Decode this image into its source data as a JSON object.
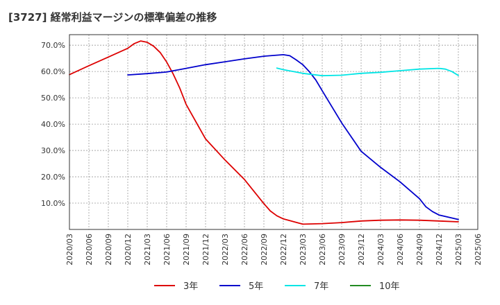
{
  "chart_data": {
    "type": "line",
    "title": "[3727]  経常利益マージンの標準偏差の推移",
    "xlabel": "",
    "ylabel": "",
    "x_ticks": [
      "2020/03",
      "2020/06",
      "2020/09",
      "2020/12",
      "2021/03",
      "2021/06",
      "2021/09",
      "2021/12",
      "2022/03",
      "2022/06",
      "2022/09",
      "2022/12",
      "2023/03",
      "2023/06",
      "2023/09",
      "2023/12",
      "2024/03",
      "2024/06",
      "2024/09",
      "2024/12",
      "2025/03",
      "2025/06"
    ],
    "y_ticks": [
      "10.0%",
      "20.0%",
      "30.0%",
      "40.0%",
      "50.0%",
      "60.0%",
      "70.0%"
    ],
    "ylim": [
      0,
      0.74
    ],
    "grid": true,
    "legend_position": "bottom",
    "series": [
      {
        "name": "3年",
        "color": "#dd0000",
        "points": [
          [
            "2020/03",
            0.588
          ],
          [
            "2020/06",
            0.622
          ],
          [
            "2020/09",
            0.655
          ],
          [
            "2020/12",
            0.688
          ],
          [
            "2021/01",
            0.706
          ],
          [
            "2021/02",
            0.716
          ],
          [
            "2021/03",
            0.711
          ],
          [
            "2021/04",
            0.696
          ],
          [
            "2021/05",
            0.672
          ],
          [
            "2021/06",
            0.636
          ],
          [
            "2021/07",
            0.591
          ],
          [
            "2021/08",
            0.538
          ],
          [
            "2021/09",
            0.475
          ],
          [
            "2021/12",
            0.344
          ],
          [
            "2022/03",
            0.264
          ],
          [
            "2022/06",
            0.19
          ],
          [
            "2022/09",
            0.098
          ],
          [
            "2022/10",
            0.07
          ],
          [
            "2022/11",
            0.052
          ],
          [
            "2022/12",
            0.04
          ],
          [
            "2023/03",
            0.02
          ],
          [
            "2023/06",
            0.022
          ],
          [
            "2023/09",
            0.026
          ],
          [
            "2023/12",
            0.032
          ],
          [
            "2024/03",
            0.035
          ],
          [
            "2024/06",
            0.036
          ],
          [
            "2024/09",
            0.035
          ],
          [
            "2024/12",
            0.032
          ],
          [
            "2025/03",
            0.029
          ]
        ]
      },
      {
        "name": "5年",
        "color": "#0000cc",
        "points": [
          [
            "2020/12",
            0.587
          ],
          [
            "2021/03",
            0.592
          ],
          [
            "2021/06",
            0.598
          ],
          [
            "2021/09",
            0.612
          ],
          [
            "2021/12",
            0.626
          ],
          [
            "2022/03",
            0.637
          ],
          [
            "2022/06",
            0.648
          ],
          [
            "2022/09",
            0.658
          ],
          [
            "2022/12",
            0.664
          ],
          [
            "2023/01",
            0.66
          ],
          [
            "2023/02",
            0.644
          ],
          [
            "2023/03",
            0.626
          ],
          [
            "2023/04",
            0.6
          ],
          [
            "2023/05",
            0.568
          ],
          [
            "2023/06",
            0.527
          ],
          [
            "2023/09",
            0.405
          ],
          [
            "2023/12",
            0.297
          ],
          [
            "2024/03",
            0.236
          ],
          [
            "2024/06",
            0.181
          ],
          [
            "2024/09",
            0.117
          ],
          [
            "2024/10",
            0.086
          ],
          [
            "2024/11",
            0.068
          ],
          [
            "2024/12",
            0.055
          ],
          [
            "2025/03",
            0.038
          ]
        ]
      },
      {
        "name": "7年",
        "color": "#00e5e5",
        "points": [
          [
            "2022/11",
            0.613
          ],
          [
            "2022/12",
            0.607
          ],
          [
            "2023/03",
            0.593
          ],
          [
            "2023/06",
            0.584
          ],
          [
            "2023/09",
            0.586
          ],
          [
            "2023/12",
            0.593
          ],
          [
            "2024/03",
            0.597
          ],
          [
            "2024/06",
            0.603
          ],
          [
            "2024/09",
            0.609
          ],
          [
            "2024/12",
            0.612
          ],
          [
            "2025/01",
            0.609
          ],
          [
            "2025/02",
            0.6
          ],
          [
            "2025/03",
            0.585
          ]
        ]
      },
      {
        "name": "10年",
        "color": "#228b22",
        "points": []
      }
    ]
  }
}
